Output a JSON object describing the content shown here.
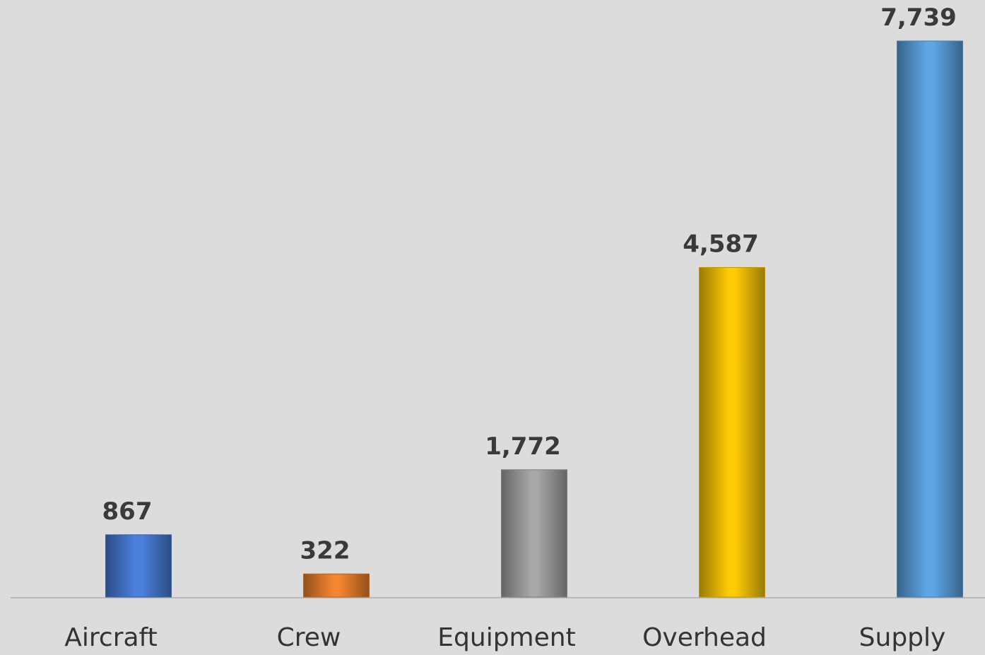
{
  "chart_data": {
    "type": "bar",
    "categories": [
      "Aircraft",
      "Crew",
      "Equipment",
      "Overhead",
      "Supply"
    ],
    "values": [
      867,
      322,
      1772,
      4587,
      7739
    ],
    "value_labels": [
      "867",
      "322",
      "1,772",
      "4,587",
      "7,739"
    ],
    "colors": [
      "#4a80dc",
      "#f5852f",
      "#a8a8a8",
      "#ffcb05",
      "#5ea6e6"
    ]
  }
}
